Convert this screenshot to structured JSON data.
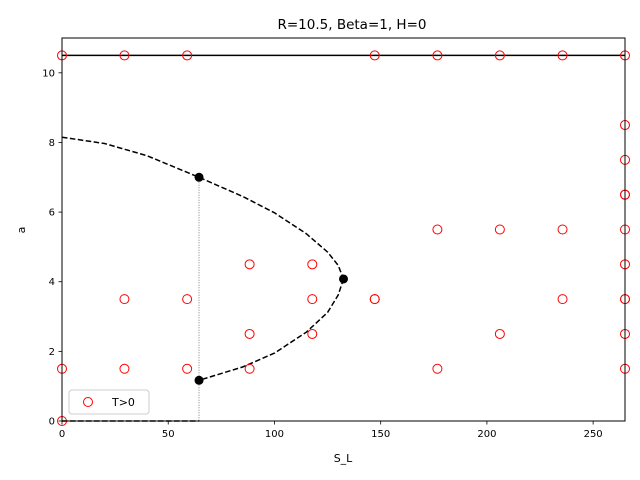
{
  "chart_data": {
    "type": "scatter",
    "title": "R=10.5, Beta=1, H=0",
    "xlabel": "S_L",
    "ylabel": "a",
    "xlim": [
      0,
      265
    ],
    "ylim": [
      0,
      11
    ],
    "xticks": [
      0,
      50,
      100,
      150,
      200,
      250
    ],
    "yticks": [
      0,
      2,
      4,
      6,
      8,
      10
    ],
    "grid": false,
    "legend": {
      "placement": "lower-left",
      "entries": [
        "T>0"
      ]
    },
    "colors": {
      "scatter": "#ff0000",
      "curve": "#000000",
      "dotted": "#808080"
    },
    "series": [
      {
        "name": "T>0",
        "kind": "scatter-open",
        "points": [
          [
            0,
            10.5
          ],
          [
            29.4,
            10.5
          ],
          [
            58.9,
            10.5
          ],
          [
            147.2,
            10.5
          ],
          [
            176.7,
            10.5
          ],
          [
            206.1,
            10.5
          ],
          [
            235.6,
            10.5
          ],
          [
            265,
            10.5
          ],
          [
            265,
            8.5
          ],
          [
            265,
            7.5
          ],
          [
            265,
            6.5
          ],
          [
            265,
            6.5
          ],
          [
            176.7,
            5.5
          ],
          [
            206.1,
            5.5
          ],
          [
            235.6,
            5.5
          ],
          [
            265,
            5.5
          ],
          [
            88.3,
            4.5
          ],
          [
            117.8,
            4.5
          ],
          [
            265,
            4.5
          ],
          [
            29.4,
            3.5
          ],
          [
            58.9,
            3.5
          ],
          [
            117.8,
            3.5
          ],
          [
            147.2,
            3.5
          ],
          [
            147.2,
            3.5
          ],
          [
            235.6,
            3.5
          ],
          [
            265,
            3.5
          ],
          [
            265,
            3.5
          ],
          [
            88.3,
            2.5
          ],
          [
            117.8,
            2.5
          ],
          [
            206.1,
            2.5
          ],
          [
            265,
            2.5
          ],
          [
            0,
            1.5
          ],
          [
            29.4,
            1.5
          ],
          [
            58.9,
            1.5
          ],
          [
            88.3,
            1.5
          ],
          [
            176.7,
            1.5
          ],
          [
            265,
            1.5
          ],
          [
            0,
            0
          ]
        ]
      },
      {
        "kind": "line-solid",
        "points": [
          [
            0,
            10.5
          ],
          [
            265,
            10.5
          ]
        ]
      },
      {
        "kind": "curve-dashed-upper",
        "points": [
          [
            0,
            8.15
          ],
          [
            20,
            7.97
          ],
          [
            40,
            7.62
          ],
          [
            64.5,
            7.0
          ],
          [
            85,
            6.45
          ],
          [
            100,
            5.98
          ],
          [
            115,
            5.38
          ],
          [
            125,
            4.85
          ],
          [
            130,
            4.47
          ],
          [
            132.5,
            4.08
          ]
        ]
      },
      {
        "kind": "curve-dashed-lower",
        "points": [
          [
            132.5,
            4.08
          ],
          [
            130,
            3.62
          ],
          [
            125,
            3.12
          ],
          [
            115,
            2.55
          ],
          [
            100,
            1.95
          ],
          [
            85,
            1.55
          ],
          [
            64.5,
            1.17
          ]
        ]
      },
      {
        "kind": "line-dashed-base",
        "points": [
          [
            0,
            0
          ],
          [
            64.5,
            0
          ]
        ]
      },
      {
        "kind": "line-dotted-vertical",
        "points": [
          [
            64.5,
            7.0
          ],
          [
            64.5,
            0
          ]
        ]
      },
      {
        "kind": "markers-filled",
        "points": [
          [
            64.5,
            7.0
          ],
          [
            132.5,
            4.08
          ],
          [
            64.5,
            1.17
          ]
        ]
      }
    ]
  }
}
